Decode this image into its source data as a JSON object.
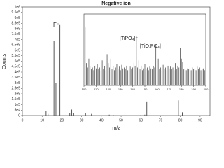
{
  "chart_data": [
    {
      "type": "bar",
      "title": "Negative ion",
      "x_label": "m/z",
      "y_label": "Counts",
      "color": "#555555",
      "x": [
        12,
        13,
        14,
        16,
        17,
        19,
        24,
        25,
        26,
        32,
        35,
        44,
        46,
        60,
        62,
        63,
        79,
        81
      ],
      "values": [
        40000,
        15000,
        10000,
        690000,
        300000,
        840000,
        20000,
        55000,
        25000,
        20000,
        15000,
        8000,
        6000,
        5000,
        8000,
        130000,
        140000,
        30000
      ],
      "annotations": [
        "F⁻"
      ],
      "xlim": [
        0,
        95
      ],
      "xticks": [
        0,
        10,
        20,
        30,
        40,
        50,
        60,
        70,
        80,
        90
      ],
      "ylim": [
        0,
        1000000
      ],
      "yticks": [
        0,
        {
          "value": 50000,
          "label": "5e4"
        },
        {
          "value": 100000,
          "label": "1e5"
        },
        {
          "value": 150000,
          "label": "1.5e5"
        },
        {
          "value": 200000,
          "label": "2e5"
        },
        {
          "value": 250000,
          "label": "2.5e5"
        },
        {
          "value": 300000,
          "label": "3e5"
        },
        {
          "value": 350000,
          "label": "3.5e5"
        },
        {
          "value": 400000,
          "label": "4e5"
        },
        {
          "value": 450000,
          "label": "4.5e5"
        },
        {
          "value": 500000,
          "label": "5e5"
        },
        {
          "value": 550000,
          "label": "5.5e5"
        },
        {
          "value": 600000,
          "label": "6e5"
        },
        {
          "value": 650000,
          "label": "6.5e5"
        },
        {
          "value": 700000,
          "label": "7e5"
        },
        {
          "value": 750000,
          "label": "7.5e5"
        },
        {
          "value": 800000,
          "label": "8e5"
        },
        {
          "value": 850000,
          "label": "8.5e5"
        },
        {
          "value": 900000,
          "label": "9e5"
        },
        {
          "value": 950000,
          "label": "9.5e5"
        },
        {
          "value": 1000000,
          "label": "1e6"
        }
      ]
    },
    {
      "type": "bar",
      "color": "#555555",
      "x": [
        101,
        102,
        103,
        104,
        105,
        106,
        107,
        108,
        109,
        110,
        111,
        112,
        113,
        114,
        115,
        116,
        117,
        118,
        119,
        120,
        121,
        122,
        123,
        124,
        125,
        126,
        127,
        128,
        129,
        130,
        131,
        132,
        133,
        134,
        135,
        136,
        137,
        138,
        139,
        140,
        141,
        142,
        143,
        144,
        145,
        146,
        147,
        148,
        149,
        150,
        151,
        152,
        153,
        154,
        155,
        156,
        157,
        158,
        159,
        160,
        161,
        162,
        163,
        164,
        165,
        166,
        167,
        168,
        169,
        170,
        171,
        172,
        173,
        174,
        175,
        176,
        177,
        178,
        179,
        180,
        181,
        182,
        183,
        184,
        185,
        186,
        187,
        188,
        189,
        190,
        191,
        192,
        193,
        194,
        195,
        196,
        197,
        198,
        199
      ],
      "values": [
        65,
        25,
        20,
        30,
        22,
        18,
        20,
        17,
        22,
        19,
        24,
        18,
        20,
        16,
        28,
        18,
        22,
        17,
        35,
        25,
        20,
        30,
        18,
        22,
        17,
        20,
        24,
        18,
        21,
        17,
        23,
        19,
        20,
        18,
        22,
        17,
        19,
        21,
        18,
        20,
        25,
        22,
        55,
        20,
        28,
        18,
        22,
        17,
        19,
        24,
        18,
        20,
        17,
        21,
        19,
        18,
        22,
        20,
        45,
        24,
        30,
        18,
        20,
        17,
        23,
        18,
        20,
        17,
        22,
        19,
        21,
        18,
        20,
        17,
        25,
        18,
        22,
        20,
        42,
        30,
        26,
        18,
        20,
        17,
        19,
        18,
        22,
        17,
        20,
        18,
        19,
        17,
        21,
        18,
        20,
        17,
        18,
        19,
        17
      ],
      "annotations": [
        "[TiPO₄]⁻",
        "[TiO.PO₄]⁻"
      ],
      "xlim": [
        100,
        200
      ],
      "xticks": [
        100,
        110,
        120,
        130,
        140,
        150,
        160,
        170,
        180,
        190,
        200
      ],
      "ylim": [
        0,
        80
      ]
    }
  ]
}
